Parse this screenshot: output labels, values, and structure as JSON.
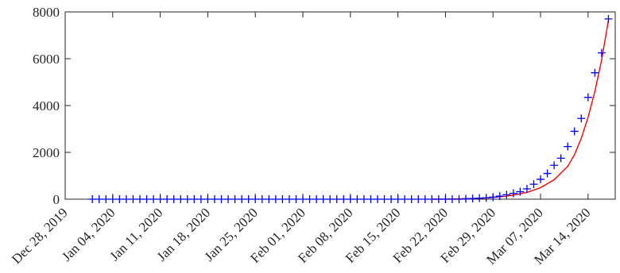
{
  "chart_data": {
    "type": "line",
    "title": "",
    "xlabel": "",
    "ylabel": "",
    "x_start": "2019-12-28",
    "x_end": "2020-03-18",
    "xlim": [
      "2019-12-28",
      "2020-03-18"
    ],
    "ylim": [
      0,
      8000
    ],
    "grid": false,
    "box": true,
    "x_ticks": [
      {
        "date": "2019-12-28",
        "label": "Dec 28, 2019"
      },
      {
        "date": "2020-01-04",
        "label": "Jan 04, 2020"
      },
      {
        "date": "2020-01-11",
        "label": "Jan 11, 2020"
      },
      {
        "date": "2020-01-18",
        "label": "Jan 18, 2020"
      },
      {
        "date": "2020-01-25",
        "label": "Jan 25, 2020"
      },
      {
        "date": "2020-02-01",
        "label": "Feb 01, 2020"
      },
      {
        "date": "2020-02-08",
        "label": "Feb 08, 2020"
      },
      {
        "date": "2020-02-15",
        "label": "Feb 15, 2020"
      },
      {
        "date": "2020-02-22",
        "label": "Feb 22, 2020"
      },
      {
        "date": "2020-02-29",
        "label": "Feb 29, 2020"
      },
      {
        "date": "2020-03-07",
        "label": "Mar 07, 2020"
      },
      {
        "date": "2020-03-14",
        "label": "Mar 14, 2020"
      }
    ],
    "y_ticks": [
      {
        "value": 0,
        "label": "0"
      },
      {
        "value": 2000,
        "label": "2000"
      },
      {
        "value": 4000,
        "label": "4000"
      },
      {
        "value": 6000,
        "label": "6000"
      },
      {
        "value": 8000,
        "label": "8000"
      }
    ],
    "series": [
      {
        "style": "markers",
        "marker": "plus",
        "color": "#0000ff",
        "x": [
          "2020-02-25",
          "2020-02-26",
          "2020-02-27",
          "2020-02-28",
          "2020-02-29",
          "2020-03-01",
          "2020-03-02",
          "2020-03-03",
          "2020-03-04",
          "2020-03-05",
          "2020-03-06",
          "2020-03-07",
          "2020-03-08",
          "2020-03-09",
          "2020-03-10",
          "2020-03-11",
          "2020-03-12",
          "2020-03-13",
          "2020-03-14",
          "2020-03-15",
          "2020-03-16",
          "2020-03-17"
        ],
        "values": [
          15,
          30,
          45,
          60,
          90,
          130,
          190,
          250,
          320,
          440,
          640,
          850,
          1100,
          1450,
          1750,
          2250,
          2900,
          3450,
          4350,
          5400,
          6250,
          7700
        ],
        "zero_from": "2020-01-01",
        "zero_to": "2020-02-24"
      },
      {
        "style": "line",
        "color": "#ff0000",
        "x": [
          "2020-02-20",
          "2020-02-22",
          "2020-02-24",
          "2020-02-26",
          "2020-02-28",
          "2020-03-01",
          "2020-03-03",
          "2020-03-05",
          "2020-03-07",
          "2020-03-09",
          "2020-03-11",
          "2020-03-12",
          "2020-03-13",
          "2020-03-14",
          "2020-03-15",
          "2020-03-16",
          "2020-03-17"
        ],
        "values": [
          0,
          5,
          15,
          30,
          55,
          100,
          170,
          290,
          490,
          830,
          1400,
          1900,
          2600,
          3500,
          4600,
          5950,
          7650
        ]
      }
    ]
  }
}
